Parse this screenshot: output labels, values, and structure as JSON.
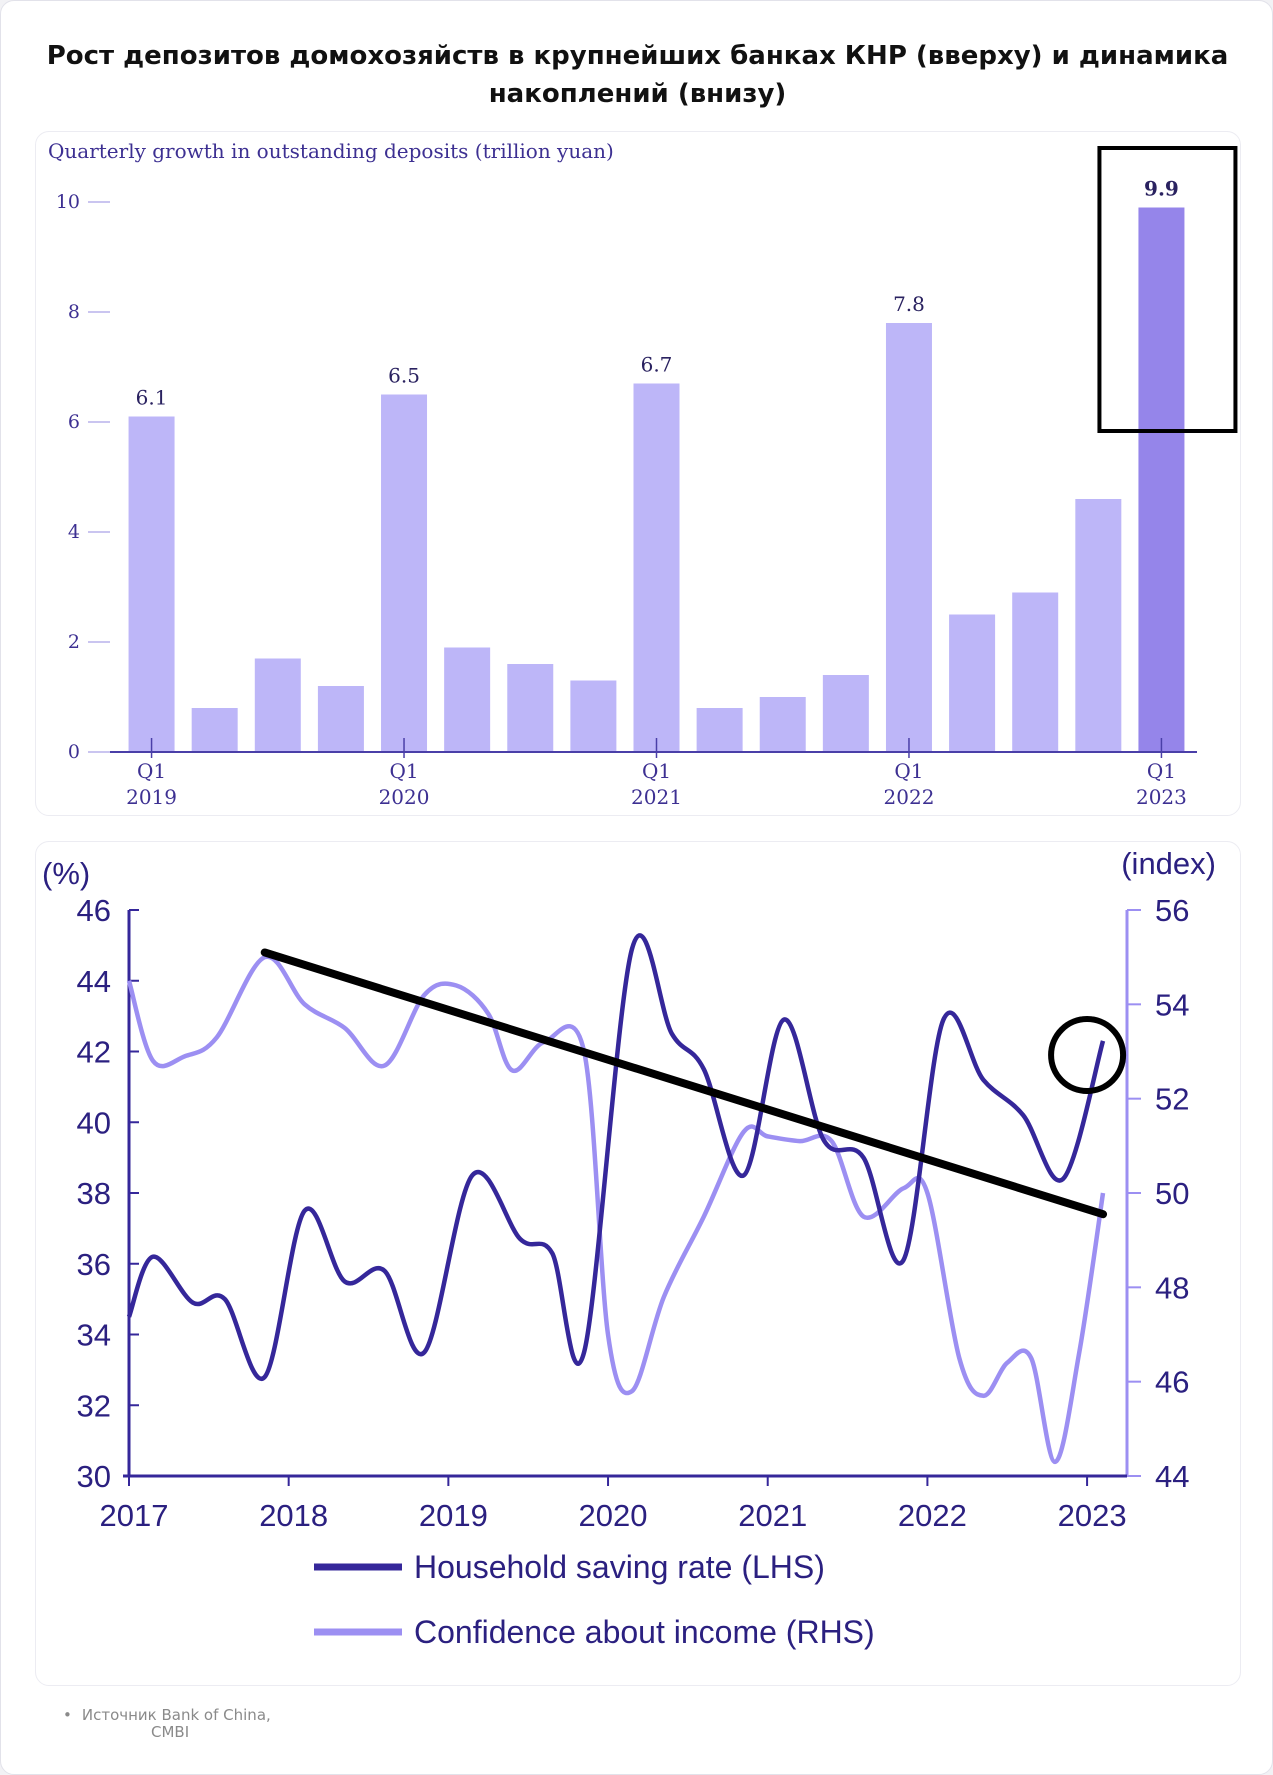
{
  "title": "Рост депозитов домохозяйств в крупнейших банках КНР (вверху) и динамика накоплений (внизу)",
  "source": {
    "line1": "Источник Bank of China,",
    "line2": "CMBI"
  },
  "colors": {
    "bar": "#bdb6f8",
    "bar_highlight": "#9585ea",
    "saving_line": "#35279a",
    "confidence_line": "#9c8ff2",
    "axis_text_top": "#3d3092",
    "axis_text_bottom": "#2b2080"
  },
  "chart_data": [
    {
      "type": "bar",
      "title": "Quarterly growth in outstanding deposits (trillion yuan)",
      "categories": [
        "Q1 2019",
        "Q2 2019",
        "Q3 2019",
        "Q4 2019",
        "Q1 2020",
        "Q2 2020",
        "Q3 2020",
        "Q4 2020",
        "Q1 2021",
        "Q2 2021",
        "Q3 2021",
        "Q4 2021",
        "Q1 2022",
        "Q2 2022",
        "Q3 2022",
        "Q4 2022",
        "Q1 2023"
      ],
      "values": [
        6.1,
        0.8,
        1.7,
        1.2,
        6.5,
        1.9,
        1.6,
        1.3,
        6.7,
        0.8,
        1.0,
        1.4,
        7.8,
        2.5,
        2.9,
        4.6,
        9.9
      ],
      "data_labels": [
        "6.1",
        "",
        "",
        "",
        "6.5",
        "",
        "",
        "",
        "6.7",
        "",
        "",
        "",
        "7.8",
        "",
        "",
        "",
        "9.9"
      ],
      "x_tick_labels": [
        {
          "index": 0,
          "line1": "Q1",
          "line2": "2019"
        },
        {
          "index": 4,
          "line1": "Q1",
          "line2": "2020"
        },
        {
          "index": 8,
          "line1": "Q1",
          "line2": "2021"
        },
        {
          "index": 12,
          "line1": "Q1",
          "line2": "2022"
        },
        {
          "index": 16,
          "line1": "Q1",
          "line2": "2023"
        }
      ],
      "yticks": [
        0,
        2,
        4,
        6,
        8,
        10
      ],
      "ylim": [
        0,
        10
      ],
      "highlight_index": 16,
      "annotation": "black rectangle around Q1 2023 bar"
    },
    {
      "type": "line",
      "ylabel_left": "(%)",
      "ylabel_right": "(index)",
      "xlim": [
        2017.0,
        2023.25
      ],
      "x_ticks": [
        "2017",
        "2018",
        "2019",
        "2020",
        "2021",
        "2022",
        "2023"
      ],
      "ylim_left": [
        30,
        46
      ],
      "yticks_left": [
        30,
        32,
        34,
        36,
        38,
        40,
        42,
        44,
        46
      ],
      "ylim_right": [
        44,
        56
      ],
      "yticks_right": [
        44,
        46,
        48,
        50,
        52,
        54,
        56
      ],
      "series": [
        {
          "name": "Household saving rate (LHS)",
          "axis": "left",
          "x": [
            2017.0,
            2017.15,
            2017.4,
            2017.6,
            2017.85,
            2018.1,
            2018.35,
            2018.6,
            2018.85,
            2019.15,
            2019.45,
            2019.65,
            2019.85,
            2020.15,
            2020.4,
            2020.6,
            2020.85,
            2021.1,
            2021.35,
            2021.6,
            2021.85,
            2022.1,
            2022.35,
            2022.6,
            2022.85,
            2023.1
          ],
          "y": [
            34.5,
            36.2,
            34.9,
            35.0,
            32.8,
            37.5,
            35.5,
            35.8,
            33.5,
            38.5,
            36.7,
            36.3,
            33.5,
            44.9,
            42.5,
            41.5,
            38.5,
            42.9,
            39.5,
            39.0,
            36.1,
            42.9,
            41.2,
            40.2,
            38.4,
            42.3
          ]
        },
        {
          "name": "Confidence about income (RHS)",
          "axis": "right",
          "x": [
            2017.0,
            2017.15,
            2017.35,
            2017.55,
            2017.85,
            2018.1,
            2018.35,
            2018.6,
            2018.85,
            2019.05,
            2019.25,
            2019.4,
            2019.6,
            2019.85,
            2020.0,
            2020.15,
            2020.35,
            2020.6,
            2020.85,
            2021.0,
            2021.2,
            2021.4,
            2021.6,
            2021.85,
            2022.0,
            2022.2,
            2022.35,
            2022.5,
            2022.65,
            2022.8,
            2022.95,
            2023.1
          ],
          "y": [
            54.5,
            52.8,
            52.9,
            53.3,
            55.0,
            54.0,
            53.5,
            52.7,
            54.2,
            54.4,
            53.8,
            52.6,
            53.2,
            53.0,
            47.0,
            45.8,
            47.8,
            49.5,
            51.3,
            51.2,
            51.1,
            51.1,
            49.5,
            50.1,
            50.0,
            46.5,
            45.7,
            46.4,
            46.5,
            44.3,
            46.6,
            50.0
          ]
        }
      ],
      "legend": {
        "placement": "bottom"
      },
      "annotations": [
        {
          "type": "trend_line",
          "x": [
            2017.85,
            2023.1
          ],
          "y": [
            44.8,
            37.4
          ],
          "axis": "left",
          "color": "#000000"
        },
        {
          "type": "circle",
          "x": 2023.0,
          "y": 41.9,
          "axis": "left",
          "color": "#000000"
        }
      ]
    }
  ]
}
